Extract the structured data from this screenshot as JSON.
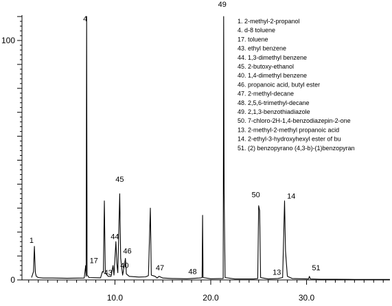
{
  "chart_data": {
    "type": "line",
    "title": "",
    "xlabel": "",
    "ylabel": "",
    "xlim": [
      0.3,
      38.7
    ],
    "ylim": [
      0,
      110.6
    ],
    "x_ticks": [
      {
        "value": 10.0,
        "label": "10.0"
      },
      {
        "value": 20.0,
        "label": "20.0"
      },
      {
        "value": 30.0,
        "label": "30.0"
      }
    ],
    "y_ticks": [
      {
        "value": 0,
        "label": "0"
      },
      {
        "value": 100,
        "label": "100"
      }
    ],
    "grid": false,
    "series": [
      {
        "values": [
          [
            1.3,
            1.0
          ],
          [
            1.5,
            3.5
          ],
          [
            1.6,
            14.0
          ],
          [
            1.7,
            3.0
          ],
          [
            1.8,
            1.5
          ],
          [
            2.0,
            1.0
          ],
          [
            2.5,
            0.8
          ],
          [
            3.5,
            0.8
          ],
          [
            5.0,
            0.7
          ],
          [
            6.8,
            0.8
          ],
          [
            6.95,
            6.0
          ],
          [
            7.0,
            1.5
          ],
          [
            7.05,
            110.0
          ],
          [
            7.1,
            2.0
          ],
          [
            7.3,
            1.0
          ],
          [
            8.5,
            0.9
          ],
          [
            8.7,
            3.5
          ],
          [
            8.8,
            3.2
          ],
          [
            8.9,
            33.0
          ],
          [
            9.0,
            3.0
          ],
          [
            9.3,
            1.5
          ],
          [
            9.6,
            1.5
          ],
          [
            9.8,
            6.0
          ],
          [
            9.9,
            2.0
          ],
          [
            10.1,
            16.0
          ],
          [
            10.2,
            7.0
          ],
          [
            10.3,
            3.0
          ],
          [
            10.5,
            36.0
          ],
          [
            10.6,
            9.0
          ],
          [
            10.8,
            2.0
          ],
          [
            11.0,
            6.5
          ],
          [
            11.1,
            9.0
          ],
          [
            11.2,
            2.5
          ],
          [
            11.5,
            1.5
          ],
          [
            12.5,
            1.2
          ],
          [
            13.2,
            1.3
          ],
          [
            13.5,
            1.8
          ],
          [
            13.7,
            30.0
          ],
          [
            13.8,
            2.0
          ],
          [
            14.2,
            1.5
          ],
          [
            14.4,
            0.8
          ],
          [
            14.6,
            1.5
          ],
          [
            15.0,
            0.8
          ],
          [
            16.0,
            0.6
          ],
          [
            17.5,
            0.5
          ],
          [
            18.8,
            0.8
          ],
          [
            19.0,
            0.9
          ],
          [
            19.1,
            1.0
          ],
          [
            19.15,
            27.0
          ],
          [
            19.2,
            1.0
          ],
          [
            20.0,
            0.5
          ],
          [
            21.3,
            0.6
          ],
          [
            21.35,
            110.0
          ],
          [
            21.4,
            36.0
          ],
          [
            21.5,
            1.0
          ],
          [
            22.5,
            0.4
          ],
          [
            24.5,
            0.4
          ],
          [
            24.9,
            0.6
          ],
          [
            25.0,
            31.0
          ],
          [
            25.1,
            29.0
          ],
          [
            25.2,
            1.0
          ],
          [
            26.0,
            0.4
          ],
          [
            27.0,
            0.6
          ],
          [
            27.5,
            1.0
          ],
          [
            27.7,
            33.0
          ],
          [
            27.8,
            12.0
          ],
          [
            28.0,
            1.5
          ],
          [
            28.5,
            0.6
          ],
          [
            29.5,
            0.5
          ],
          [
            30.2,
            0.4
          ],
          [
            30.3,
            1.5
          ],
          [
            30.4,
            0.4
          ],
          [
            31.5,
            0.3
          ],
          [
            33.0,
            0.3
          ],
          [
            35.0,
            0.2
          ],
          [
            37.0,
            0.2
          ],
          [
            38.7,
            0.2
          ]
        ]
      }
    ],
    "peak_labels": [
      {
        "text": "1",
        "x": 1.3,
        "y": 15.5
      },
      {
        "text": "4",
        "x": 6.9,
        "y": 108.0
      },
      {
        "text": "17",
        "x": 7.8,
        "y": 7.0
      },
      {
        "text": "43",
        "x": 9.3,
        "y": 2.0
      },
      {
        "text": "44",
        "x": 10.0,
        "y": 17.0
      },
      {
        "text": "45",
        "x": 10.5,
        "y": 41.0
      },
      {
        "text": "40",
        "x": 11.0,
        "y": 5.0
      },
      {
        "text": "46",
        "x": 11.3,
        "y": 11.0
      },
      {
        "text": "47",
        "x": 14.7,
        "y": 4.0
      },
      {
        "text": "48",
        "x": 18.1,
        "y": 2.5
      },
      {
        "text": "49",
        "x": 21.2,
        "y": 114.0
      },
      {
        "text": "50",
        "x": 24.7,
        "y": 34.5
      },
      {
        "text": "13",
        "x": 26.9,
        "y": 2.2
      },
      {
        "text": "14",
        "x": 28.4,
        "y": 34.0
      },
      {
        "text": "51",
        "x": 31.0,
        "y": 4.0
      }
    ],
    "legend_position": "top-right",
    "legend": [
      "1. 2-methyl-2-propanol",
      "4. d-8 toluene",
      "17. toluene",
      "43. ethyl benzene",
      "44. 1,3-dimethyl benzene",
      "45. 2-butoxy-ethanol",
      "40. 1,4-dimethyl benzene",
      "46. propanoic acid, butyl ester",
      "47. 2-methyl-decane",
      "48. 2,5,6-trimethyl-decane",
      "49. 2,1,3-benzothiadiazole",
      "50. 7-chloro-2H-1,4-benzodiazepin-2-one",
      "13. 2-methyl-2-methyl propanoic acid",
      "14. 2-ethyl-3-hydroxyhexyl ester of bu",
      "51. (2) benzopyrano (4,3-b)-(1)benzopyran"
    ]
  }
}
